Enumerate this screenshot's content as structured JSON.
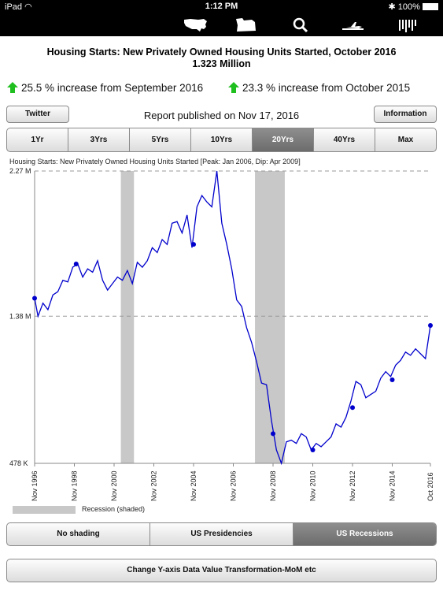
{
  "status_bar": {
    "device": "iPad",
    "time": "1:12 PM",
    "battery": "100%"
  },
  "toolbar": {
    "icons": [
      "us-map-icon",
      "state-map-icon",
      "search-icon",
      "airplane-icon",
      "chart-bars-icon"
    ]
  },
  "header": {
    "title": "Housing Starts: New Privately Owned Housing Units Started, October 2016",
    "value": "1.323 Million"
  },
  "changes": [
    {
      "text": "25.5 % increase from September 2016",
      "direction": "up",
      "color": "#1fbf1f"
    },
    {
      "text": "23.3 % increase from October 2015",
      "direction": "up",
      "color": "#1fbf1f"
    }
  ],
  "buttons": {
    "twitter": "Twitter",
    "information": "Information"
  },
  "report": "Report published on Nov 17, 2016",
  "ranges": {
    "items": [
      "1Yr",
      "3Yrs",
      "5Yrs",
      "10Yrs",
      "20Yrs",
      "40Yrs",
      "Max"
    ],
    "selected": "20Yrs"
  },
  "chart_data": {
    "type": "line",
    "title": "Housing Starts: New Privately Owned Housing Units Started [Peak: Jan 2006, Dip: Apr 2009]",
    "y_tick_labels": [
      "478 K",
      "1.38 M",
      "2.27 M"
    ],
    "y_ticks": [
      478,
      1380,
      2270
    ],
    "ylim": [
      478,
      2270
    ],
    "x_tick_labels": [
      "Nov 1996",
      "Nov 1998",
      "Nov 2000",
      "Nov 2002",
      "Nov 2004",
      "Nov 2006",
      "Nov 2008",
      "Nov 2010",
      "Nov 2012",
      "Nov 2014",
      "Oct 2016"
    ],
    "x_ticks": [
      1996.83,
      1998.83,
      2000.83,
      2002.83,
      2004.83,
      2006.83,
      2008.83,
      2010.83,
      2012.83,
      2014.83,
      2016.75
    ],
    "xlim": [
      1996.83,
      2016.75
    ],
    "line_color": "#0000cc",
    "recession_color": "#c8c8c8",
    "recessions": [
      [
        2001.17,
        2001.83
      ],
      [
        2007.92,
        2009.42
      ]
    ],
    "grid": "dashed-horizontal-at-ticks",
    "series": [
      {
        "x": [
          1996.83,
          1997.0,
          1997.25,
          1997.5,
          1997.75,
          1998.0,
          1998.25,
          1998.5,
          1998.75,
          1999.0,
          1999.25,
          1999.5,
          1999.75,
          2000.0,
          2000.25,
          2000.5,
          2000.75,
          2001.0,
          2001.25,
          2001.5,
          2001.75,
          2002.0,
          2002.25,
          2002.5,
          2002.75,
          2003.0,
          2003.25,
          2003.5,
          2003.75,
          2004.0,
          2004.25,
          2004.5,
          2004.75,
          2005.0,
          2005.25,
          2005.5,
          2005.75,
          2006.0,
          2006.25,
          2006.5,
          2006.75,
          2007.0,
          2007.25,
          2007.5,
          2007.75,
          2008.0,
          2008.25,
          2008.5,
          2008.75,
          2009.0,
          2009.25,
          2009.5,
          2009.75,
          2010.0,
          2010.25,
          2010.5,
          2010.75,
          2011.0,
          2011.25,
          2011.5,
          2011.75,
          2012.0,
          2012.25,
          2012.5,
          2012.75,
          2013.0,
          2013.25,
          2013.5,
          2013.75,
          2014.0,
          2014.25,
          2014.5,
          2014.75,
          2015.0,
          2015.25,
          2015.5,
          2015.75,
          2016.0,
          2016.25,
          2016.5,
          2016.75
        ],
        "y": [
          1490,
          1380,
          1460,
          1420,
          1510,
          1530,
          1600,
          1590,
          1680,
          1700,
          1620,
          1670,
          1650,
          1720,
          1600,
          1540,
          1580,
          1620,
          1600,
          1660,
          1580,
          1710,
          1680,
          1720,
          1800,
          1770,
          1850,
          1820,
          1950,
          1960,
          1890,
          2000,
          1800,
          2050,
          2120,
          2080,
          2050,
          2270,
          1950,
          1820,
          1670,
          1480,
          1440,
          1310,
          1220,
          1100,
          970,
          960,
          740,
          560,
          478,
          610,
          620,
          600,
          660,
          640,
          560,
          600,
          580,
          610,
          640,
          720,
          700,
          760,
          860,
          980,
          960,
          880,
          900,
          920,
          1000,
          1040,
          1010,
          1080,
          1110,
          1160,
          1140,
          1180,
          1150,
          1120,
          1323
        ]
      }
    ],
    "markers": {
      "x": [
        1996.83,
        1998.92,
        2004.83,
        2008.83,
        2010.83,
        2012.83,
        2014.83,
        2016.75
      ],
      "y": [
        1490,
        1700,
        1820,
        660,
        560,
        820,
        990,
        1323
      ]
    }
  },
  "legend": {
    "recession_label": "Recession (shaded)"
  },
  "shading": {
    "items": [
      "No shading",
      "US Presidencies",
      "US Recessions"
    ],
    "selected": "US Recessions"
  },
  "transform_button": "Change Y-axis Data Value Transformation-MoM etc"
}
